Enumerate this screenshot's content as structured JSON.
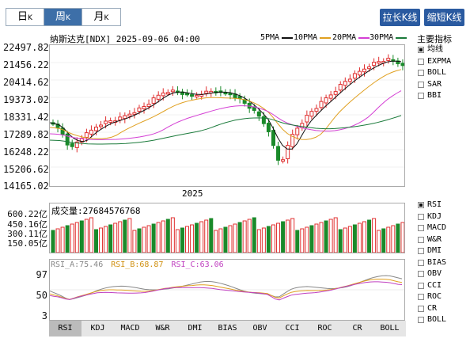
{
  "period_tabs": [
    {
      "main": "日",
      "sub": "K",
      "active": false
    },
    {
      "main": "周",
      "sub": "K",
      "active": true
    },
    {
      "main": "月",
      "sub": "K",
      "active": false
    }
  ],
  "buttons": {
    "stretch": "拉长K线",
    "shorten": "缩短K线"
  },
  "title": "纳斯达克[NDX] 2025-09-06 04:00",
  "ma_legend": [
    {
      "label": "5PMA",
      "color": "#111111"
    },
    {
      "label": "10PMA",
      "color": "#e0a020"
    },
    {
      "label": "20PMA",
      "color": "#d43fd4"
    },
    {
      "label": "30PMA",
      "color": "#1a7a3a"
    }
  ],
  "price_axis": [
    "22497.82",
    "21456.22",
    "20414.62",
    "19373.02",
    "18331.42",
    "17289.82",
    "16248.22",
    "15206.62",
    "14165.02"
  ],
  "year_label": "2025",
  "volume": {
    "header": "成交量:27684576768",
    "axis": [
      "600.22亿",
      "450.16亿",
      "300.11亿",
      "150.05亿"
    ]
  },
  "rsi": {
    "header": [
      {
        "text": "RSI_A:75.46",
        "color": "#888888"
      },
      {
        "text": "RSI_B:68.87",
        "color": "#e0a020"
      },
      {
        "text": "RSI_C:63.06",
        "color": "#c040c0"
      }
    ],
    "axis": [
      "97",
      "50",
      "3"
    ]
  },
  "main_indicator": {
    "header": "主要指标",
    "items": [
      {
        "label": "均线",
        "checked": true
      },
      {
        "label": "EXPMA",
        "checked": false
      },
      {
        "label": "BOLL",
        "checked": false
      },
      {
        "label": "SAR",
        "checked": false
      },
      {
        "label": "BBI",
        "checked": false
      }
    ]
  },
  "sub_indicators": [
    {
      "label": "RSI",
      "checked": true
    },
    {
      "label": "KDJ",
      "checked": false
    },
    {
      "label": "MACD",
      "checked": false
    },
    {
      "label": "W&R",
      "checked": false
    },
    {
      "label": "DMI",
      "checked": false
    },
    {
      "label": "BIAS",
      "checked": false
    },
    {
      "label": "OBV",
      "checked": false
    },
    {
      "label": "CCI",
      "checked": false
    },
    {
      "label": "ROC",
      "checked": false
    },
    {
      "label": "CR",
      "checked": false
    },
    {
      "label": "BOLL",
      "checked": false
    }
  ],
  "bottom_tabs": [
    {
      "label": "RSI",
      "active": true
    },
    {
      "label": "KDJ"
    },
    {
      "label": "MACD"
    },
    {
      "label": "W&R"
    },
    {
      "label": "DMI"
    },
    {
      "label": "BIAS"
    },
    {
      "label": "OBV"
    },
    {
      "label": "CCI"
    },
    {
      "label": "ROC"
    },
    {
      "label": "CR"
    },
    {
      "label": "BOLL"
    }
  ],
  "colors": {
    "up": "#e03030",
    "down": "#1a8a2a",
    "active_tab": "#3d6fa8",
    "button": "#2a5aa0"
  }
}
